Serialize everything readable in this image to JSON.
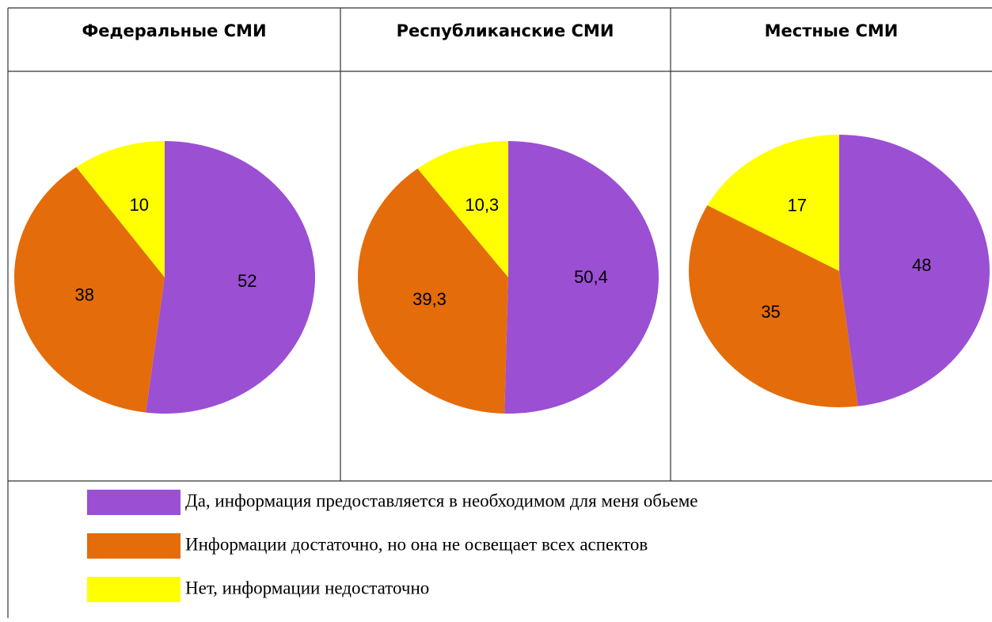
{
  "chart_data": [
    {
      "type": "pie",
      "title": "Федеральные СМИ",
      "values": [
        52,
        38,
        10
      ],
      "value_labels": [
        "52",
        "38",
        "10"
      ]
    },
    {
      "type": "pie",
      "title": "Республиканские СМИ",
      "values": [
        50.4,
        39.3,
        10.3
      ],
      "value_labels": [
        "50,4",
        "39,3",
        "10,3"
      ]
    },
    {
      "type": "pie",
      "title": "Местные СМИ",
      "values": [
        48,
        35,
        17
      ],
      "value_labels": [
        "48",
        "35",
        "17"
      ]
    }
  ],
  "legend": {
    "categories": [
      "Да, информация предоставляется в необходимом для меня обьеме",
      "Информации достаточно, но она не освещает всех аспектов",
      "Нет, информации недостаточно"
    ],
    "colors": [
      "#9b4fd3",
      "#e46c0a",
      "#ffff00"
    ]
  }
}
